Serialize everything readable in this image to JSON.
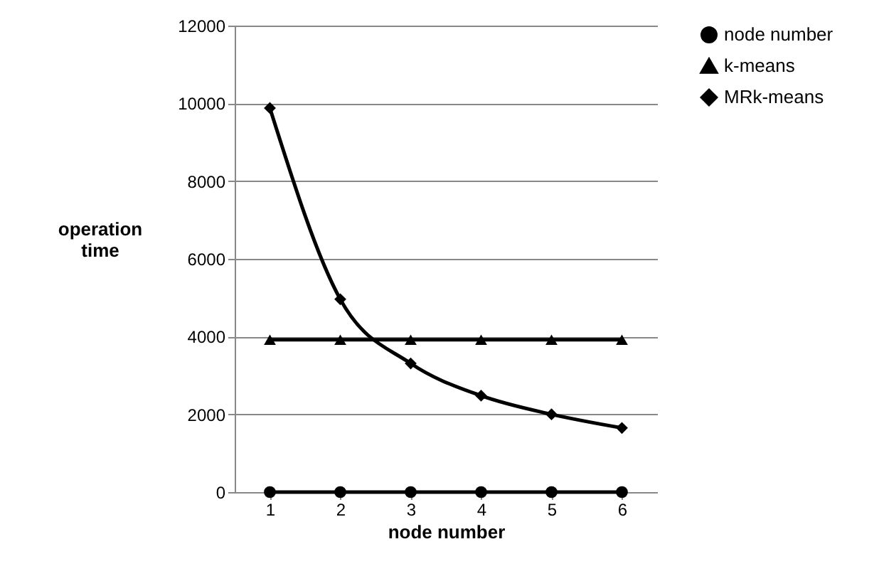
{
  "chart_data": {
    "type": "line",
    "xlabel": "node number",
    "ylabel": "operation time",
    "categories": [
      "1",
      "2",
      "3",
      "4",
      "5",
      "6"
    ],
    "series": [
      {
        "name": "node number",
        "color": "#000000",
        "marker": "circle",
        "values": [
          0,
          0,
          0,
          0,
          0,
          0
        ]
      },
      {
        "name": "k-means",
        "color": "#000000",
        "marker": "triangle",
        "values": [
          3920,
          3920,
          3920,
          3920,
          3920,
          3920
        ]
      },
      {
        "name": "MRk-means",
        "color": "#000000",
        "marker": "diamond",
        "values": [
          9880,
          4960,
          3310,
          2480,
          2000,
          1650
        ]
      }
    ],
    "ylim": [
      0,
      12000
    ],
    "yticks": [
      0,
      2000,
      4000,
      6000,
      8000,
      10000,
      12000
    ],
    "grid": "y",
    "legend": "right",
    "line_style": "solid"
  }
}
